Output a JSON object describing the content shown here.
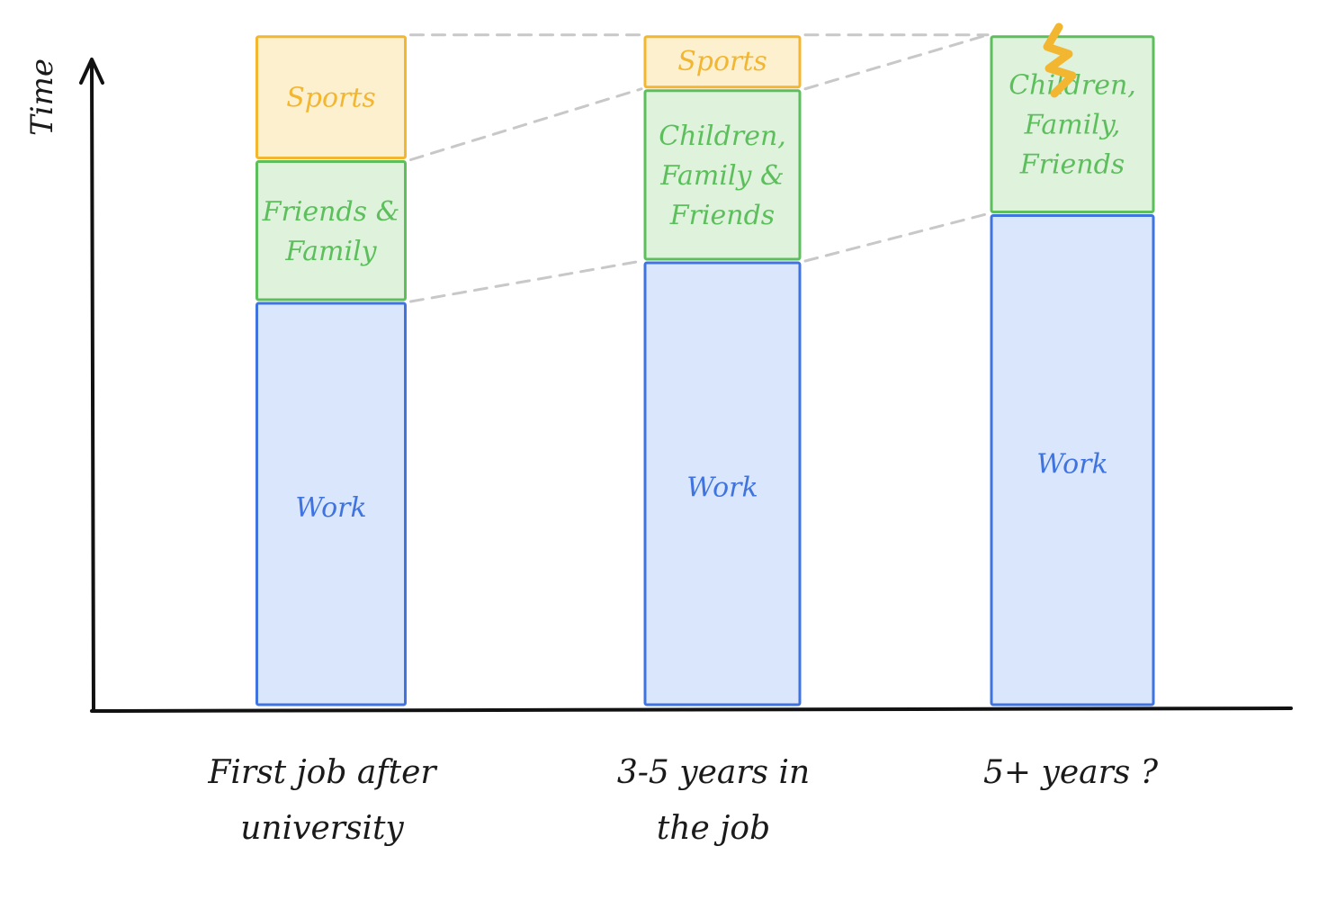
{
  "chart_data": {
    "type": "bar",
    "stacked": true,
    "title": "",
    "xlabel": "",
    "ylabel": "Time",
    "categories": [
      [
        "First job after",
        "university"
      ],
      [
        "3-5 years in",
        "the job"
      ],
      [
        "5+ years ?"
      ]
    ],
    "grid": false,
    "legend": "none",
    "ylim": [
      0,
      10
    ],
    "stacks": [
      [
        {
          "label": [
            "Work"
          ],
          "value": 6.0,
          "color": "#3f74e0",
          "fill": "#d9e6fb"
        },
        {
          "label": [
            "Friends &",
            "Family"
          ],
          "value": 2.1,
          "color": "#5cbf5c",
          "fill": "#def2dc"
        },
        {
          "label": [
            "Sports"
          ],
          "value": 1.85,
          "color": "#f2b630",
          "fill": "#fdf0cf"
        }
      ],
      [
        {
          "label": [
            "Work"
          ],
          "value": 6.6,
          "color": "#3f74e0",
          "fill": "#d9e6fb"
        },
        {
          "label": [
            "Children,",
            "Family &",
            "Friends"
          ],
          "value": 2.55,
          "color": "#5cbf5c",
          "fill": "#def2dc"
        },
        {
          "label": [
            "Sports"
          ],
          "value": 0.8,
          "color": "#f2b630",
          "fill": "#fdf0cf"
        }
      ],
      [
        {
          "label": [
            "Work"
          ],
          "value": 7.3,
          "color": "#3f74e0",
          "fill": "#d9e6fb"
        },
        {
          "label": [
            "Children,",
            "Family,",
            "Friends"
          ],
          "value": 2.65,
          "color": "#5cbf5c",
          "fill": "#def2dc"
        }
      ]
    ],
    "connector_color": "#c8c8c8",
    "burnout_color": "#f2b630"
  }
}
